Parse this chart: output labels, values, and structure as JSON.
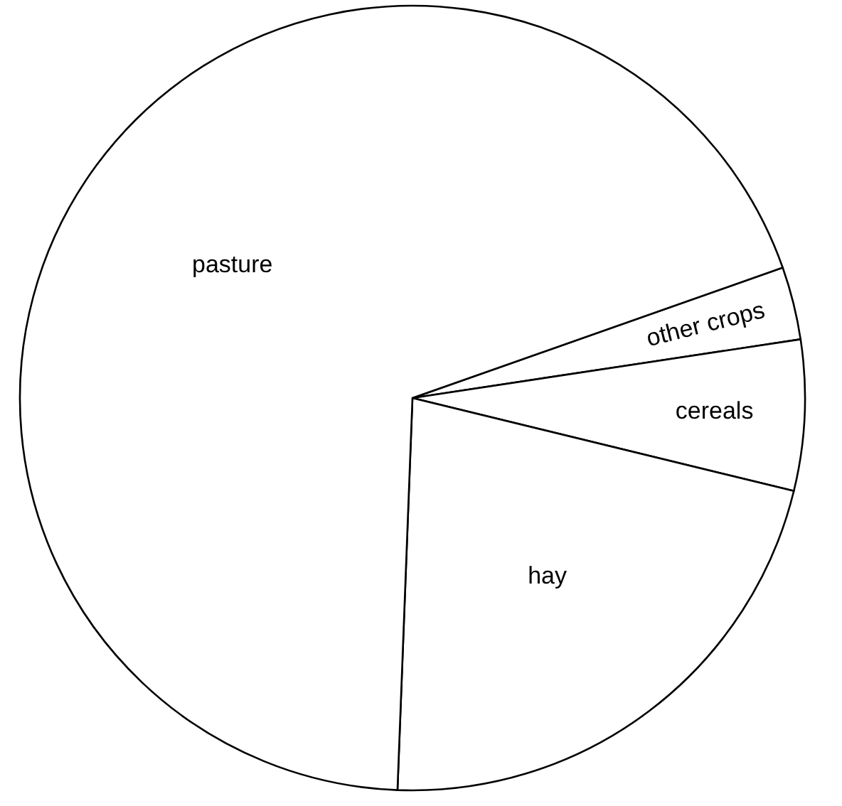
{
  "chart_data": {
    "type": "pie",
    "categories": [
      "other crops",
      "cereals",
      "hay",
      "pasture"
    ],
    "values": [
      3.0,
      6.2,
      21.8,
      69.0
    ],
    "colors": [
      "#ffffff",
      "#ffffff",
      "#ffffff",
      "#ffffff"
    ]
  }
}
